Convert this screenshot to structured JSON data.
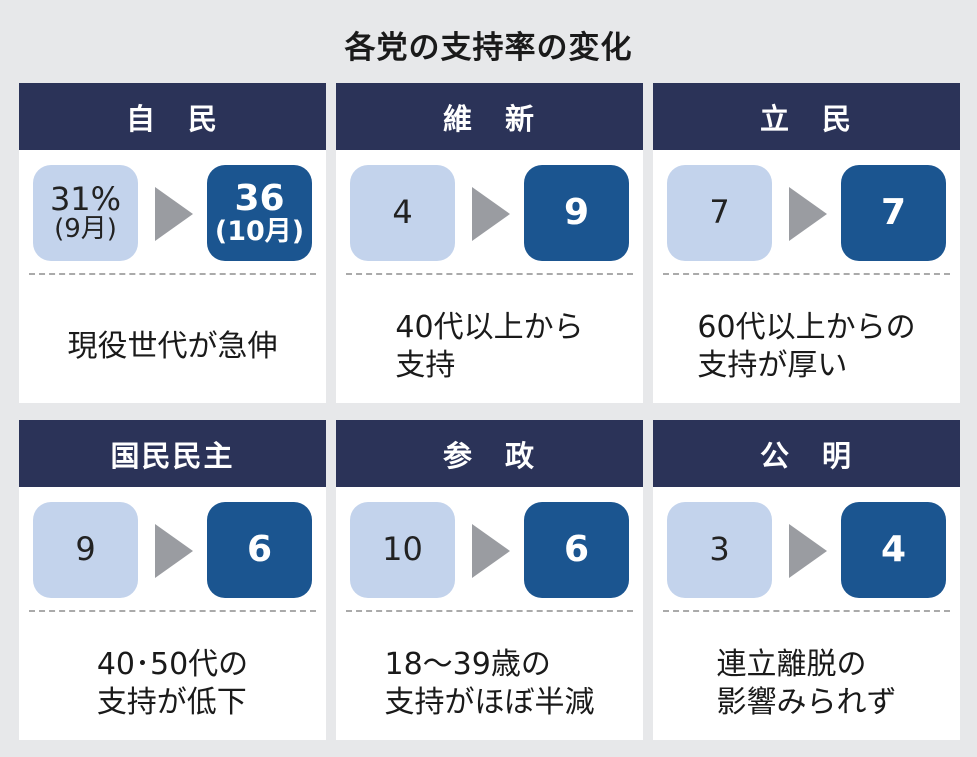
{
  "title": "各党の支持率の変化",
  "colors": {
    "header": "#2b3358",
    "before_box": "#c3d3ec",
    "after_box": "#1b5590",
    "background": "#e7e8ea"
  },
  "parties": [
    {
      "name": "自　民",
      "before": "31%",
      "before_sub": "(9月)",
      "after": "36",
      "after_sub": "(10月)",
      "note": "現役世代が急伸"
    },
    {
      "name": "維　新",
      "before": "4",
      "after": "9",
      "note": "40代以上から\n支持"
    },
    {
      "name": "立　民",
      "before": "7",
      "after": "7",
      "note": "60代以上からの\n支持が厚い"
    },
    {
      "name": "国民民主",
      "before": "9",
      "after": "6",
      "note": "40･50代の\n支持が低下"
    },
    {
      "name": "参　政",
      "before": "10",
      "after": "6",
      "note": "18～39歳の\n支持がほぼ半減"
    },
    {
      "name": "公　明",
      "before": "3",
      "after": "4",
      "note": "連立離脱の\n影響みられず"
    }
  ]
}
